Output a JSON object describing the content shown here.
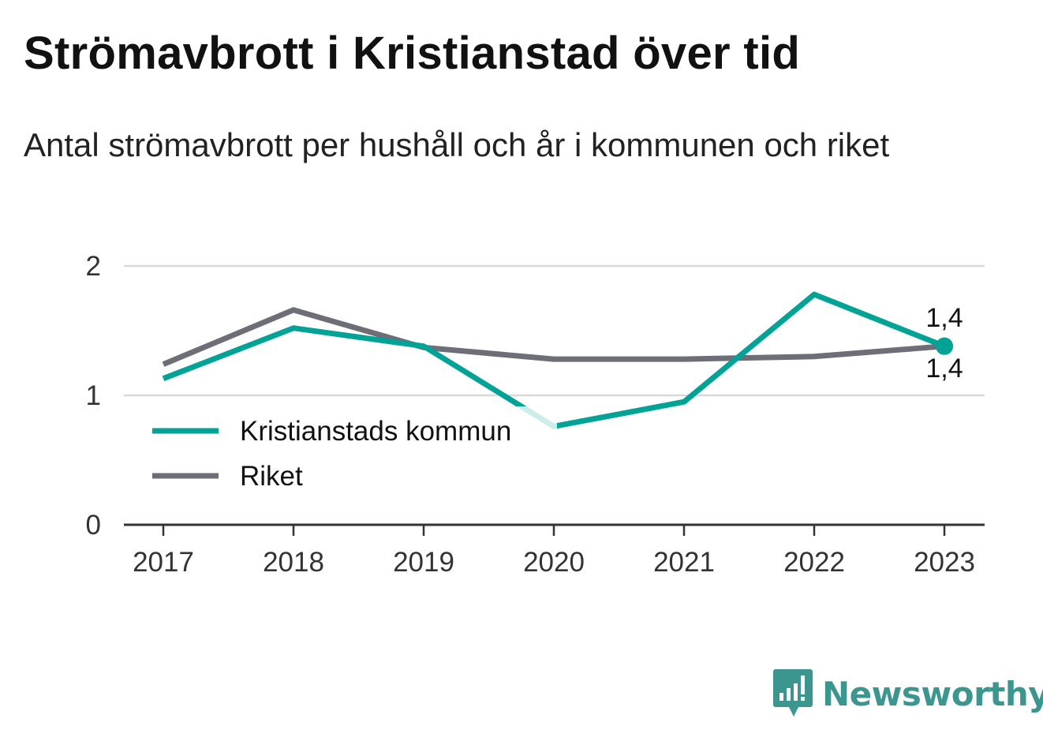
{
  "title": "Strömavbrott i Kristianstad över tid",
  "subtitle": "Antal strömavbrott per hushåll och år i kommunen och riket",
  "brand": {
    "name": "Newsworthy",
    "logo_icon": "bar-chart-speech-bubble-icon"
  },
  "colors": {
    "kristianstad": "#00a396",
    "riket": "#6e6e78",
    "grid": "#d9d9d9",
    "axis": "#333333",
    "brand": "#3a968f"
  },
  "chart_data": {
    "type": "line",
    "x": [
      "2017",
      "2018",
      "2019",
      "2020",
      "2021",
      "2022",
      "2023"
    ],
    "ylim": [
      0,
      2
    ],
    "yticks": [
      0,
      1,
      2
    ],
    "grid": true,
    "legend_position": "bottom-left",
    "series": [
      {
        "name": "Kristianstads kommun",
        "values": [
          1.13,
          1.52,
          1.38,
          0.76,
          0.95,
          1.78,
          1.38
        ]
      },
      {
        "name": "Riket",
        "values": [
          1.24,
          1.66,
          1.37,
          1.28,
          1.28,
          1.3,
          1.38
        ]
      }
    ],
    "end_labels": [
      "1,4",
      "1,4"
    ]
  }
}
